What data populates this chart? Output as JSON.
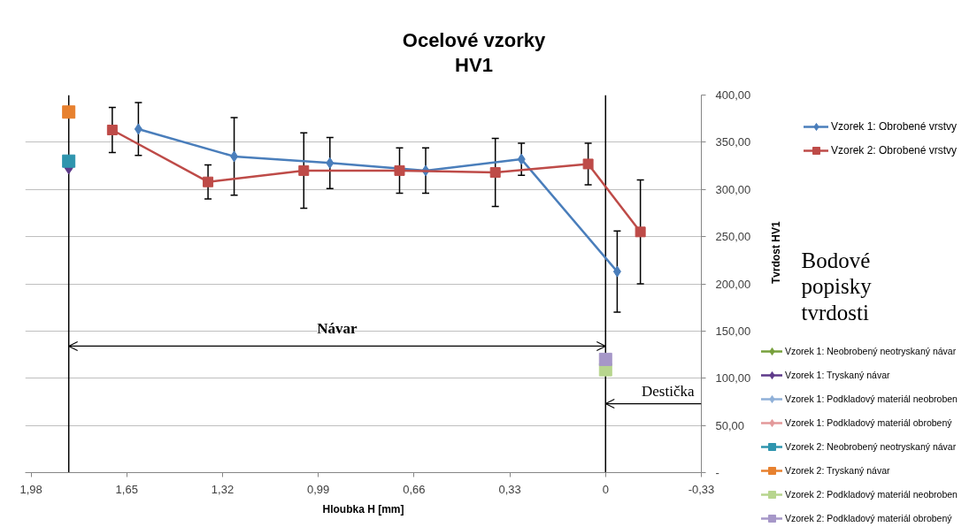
{
  "chart_data": {
    "type": "line",
    "title": "Ocelové vzorky",
    "subtitle": "HV1",
    "xlabel": "Hloubka H [mm]",
    "ylabel": "Tvrdost HV1",
    "xlim": [
      2.0,
      -0.33
    ],
    "xticks": [
      {
        "value": 1.98,
        "label": "1,98"
      },
      {
        "value": 1.65,
        "label": "1,65"
      },
      {
        "value": 1.32,
        "label": "1,32"
      },
      {
        "value": 0.99,
        "label": "0,99"
      },
      {
        "value": 0.66,
        "label": "0,66"
      },
      {
        "value": 0.33,
        "label": "0,33"
      },
      0,
      {
        "value": -0.33,
        "label": "-0,33"
      }
    ],
    "ylim": [
      0,
      400
    ],
    "yticks": [
      {
        "value": 0,
        "label": "-"
      },
      {
        "value": 50,
        "label": "50,00"
      },
      {
        "value": 100,
        "label": "100,00"
      },
      {
        "value": 150,
        "label": "150,00"
      },
      {
        "value": 200,
        "label": "200,00"
      },
      {
        "value": 250,
        "label": "250,00"
      },
      {
        "value": 300,
        "label": "300,00"
      },
      {
        "value": 350,
        "label": "350,00"
      },
      {
        "value": 400,
        "label": "400,00"
      }
    ],
    "grid": "y",
    "legend": "right",
    "series": [
      {
        "name": "Vzorek 1: Obrobené vrstvy",
        "color": "#4a7ebb",
        "marker": "diamond",
        "x": [
          1.61,
          1.28,
          0.95,
          0.62,
          0.29,
          -0.04
        ],
        "values": [
          364,
          335,
          328,
          320,
          332,
          213
        ],
        "errors": [
          28,
          41,
          27,
          24,
          17,
          43
        ]
      },
      {
        "name": "Vzorek 2: Obrobené vrstvy",
        "color": "#be4b48",
        "marker": "square",
        "x": [
          1.7,
          1.37,
          1.04,
          0.71,
          0.38,
          0.06,
          -0.12
        ],
        "values": [
          363,
          308,
          320,
          320,
          318,
          327,
          255
        ],
        "errors": [
          24,
          18,
          40,
          24,
          36,
          22,
          55
        ]
      },
      {
        "name": "Vzorek 1: Neobrobený neotryskaný návar",
        "color": "#77a03c",
        "marker": "diamond"
      },
      {
        "name": "Vzorek 1: Tryskaný návar",
        "color": "#5e3a8a",
        "marker": "diamond",
        "x": [
          1.85
        ],
        "values": [
          323
        ]
      },
      {
        "name": "Vzorek 1: Podkladový materiál neobroben",
        "color": "#8fb0d8",
        "marker": "diamond"
      },
      {
        "name": "Vzorek 1: Podkladový materiál obrobený",
        "color": "#e3999a",
        "marker": "diamond"
      },
      {
        "name": "Vzorek 2: Neobrobený neotryskaný návar",
        "color": "#2f95ae",
        "marker": "square",
        "x": [
          1.85
        ],
        "values": [
          330
        ]
      },
      {
        "name": "Vzorek 2: Tryskaný návar",
        "color": "#e7812f",
        "marker": "square",
        "x": [
          1.85
        ],
        "values": [
          382
        ]
      },
      {
        "name": "Vzorek 2: Podkladový materiál neobroben",
        "color": "#b7d58e",
        "marker": "square",
        "x": [
          0
        ],
        "values": [
          109
        ]
      },
      {
        "name": "Vzorek 2: Podkladový materiál obrobený",
        "color": "#a697c8",
        "marker": "square",
        "x": [
          0
        ],
        "values": [
          120
        ]
      }
    ],
    "ref_lines": [
      {
        "axis": "x",
        "value": 1.85,
        "color": "#000000"
      },
      {
        "axis": "x",
        "value": 0,
        "color": "#000000"
      }
    ],
    "annotations": [
      {
        "text": "Návar",
        "x": 1.85,
        "y": 134
      },
      {
        "text": "Destička",
        "x": 0,
        "y": 73
      },
      "Bodové popisky tvrdosti"
    ]
  }
}
